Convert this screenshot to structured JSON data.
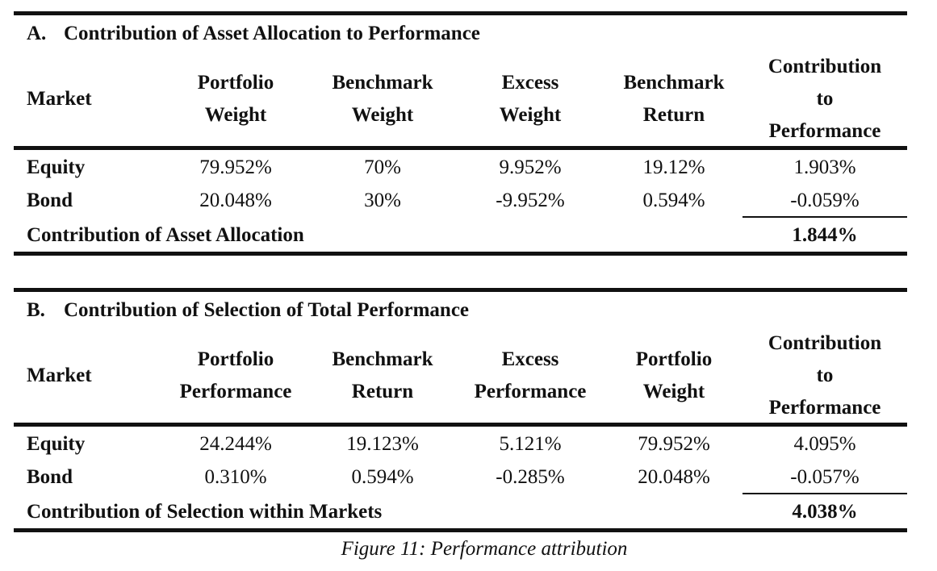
{
  "panel_a": {
    "letter": "A.",
    "title": "Contribution of Asset Allocation to Performance",
    "headers": {
      "market": "Market",
      "col1": [
        "Portfolio",
        "Weight"
      ],
      "col2": [
        "Benchmark",
        "Weight"
      ],
      "col3": [
        "Excess",
        "Weight"
      ],
      "col4": [
        "Benchmark",
        "Return"
      ],
      "col5": [
        "Contribution",
        "to",
        "Performance"
      ]
    },
    "rows": [
      {
        "label": "Equity",
        "values": [
          "79.952%",
          "70%",
          "9.952%",
          "19.12%",
          "1.903%"
        ]
      },
      {
        "label": "Bond",
        "values": [
          "20.048%",
          "30%",
          "-9.952%",
          "0.594%",
          "-0.059%"
        ]
      }
    ],
    "total_label": "Contribution of Asset Allocation",
    "total_value": "1.844%"
  },
  "panel_b": {
    "letter": "B.",
    "title": "Contribution of Selection of Total Performance",
    "headers": {
      "market": "Market",
      "col1": [
        "Portfolio",
        "Performance"
      ],
      "col2": [
        "Benchmark",
        "Return"
      ],
      "col3": [
        "Excess",
        "Performance"
      ],
      "col4": [
        "Portfolio",
        "Weight"
      ],
      "col5": [
        "Contribution",
        "to",
        "Performance"
      ]
    },
    "rows": [
      {
        "label": "Equity",
        "values": [
          "24.244%",
          "19.123%",
          "5.121%",
          "79.952%",
          "4.095%"
        ]
      },
      {
        "label": "Bond",
        "values": [
          "0.310%",
          "0.594%",
          "-0.285%",
          "20.048%",
          "-0.057%"
        ]
      }
    ],
    "total_label": "Contribution of Selection within Markets",
    "total_value": "4.038%"
  },
  "caption": "Figure 11: Performance attribution"
}
